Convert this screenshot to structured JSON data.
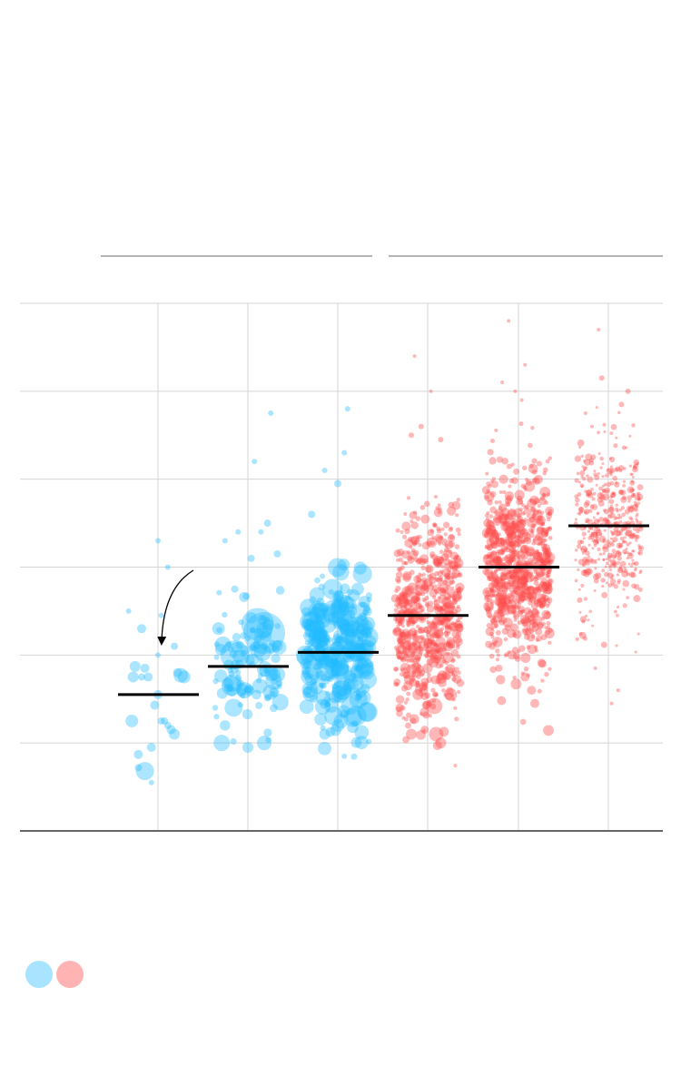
{
  "chart_data": {
    "type": "scatter",
    "title": "",
    "subtitle": "",
    "xlabel": "",
    "ylabel": "",
    "grid": true,
    "legend": {
      "placement": "bottom-left",
      "entries": []
    },
    "y_gridlines": 6,
    "columns": [
      {
        "group": 0,
        "color": "#22bbff",
        "median": 1.55,
        "dots": [
          [
            0.15,
            1.87,
            6
          ],
          [
            0.25,
            1.75,
            4
          ],
          [
            0.12,
            1.75,
            6
          ],
          [
            0.35,
            1.75,
            5
          ],
          [
            0.8,
            1.8,
            5
          ],
          [
            0.85,
            1.77,
            8
          ],
          [
            0.5,
            1.55,
            5
          ],
          [
            0.1,
            1.25,
            7
          ],
          [
            0.3,
            0.68,
            10
          ],
          [
            0.2,
            0.87,
            5
          ],
          [
            0.4,
            0.95,
            5
          ],
          [
            0.2,
            0.72,
            4
          ],
          [
            0.65,
            1.2,
            4
          ],
          [
            0.75,
            1.1,
            6
          ],
          [
            0.7,
            1.15,
            5
          ],
          [
            0.55,
            1.25,
            4
          ],
          [
            0.45,
            1.43,
            5
          ],
          [
            0.4,
            0.55,
            3
          ],
          [
            0.75,
            2.1,
            4
          ],
          [
            0.5,
            2.0,
            3
          ],
          [
            0.55,
            2.45,
            3
          ],
          [
            0.65,
            3.0,
            3
          ],
          [
            0.25,
            2.3,
            5
          ],
          [
            0.05,
            2.5,
            3
          ],
          [
            0.5,
            3.3,
            3
          ],
          [
            0.6,
            1.25,
            4
          ],
          [
            0.9,
            1.75,
            7
          ],
          [
            0.3,
            1.85,
            5
          ]
        ]
      },
      {
        "group": 0,
        "color": "#22bbff",
        "median": 1.87,
        "cloud": {
          "n": 110,
          "center": 1.9,
          "spread": 0.35,
          "rmin": 3,
          "rmax": 10,
          "seed": 11
        },
        "dots": [
          [
            0.75,
            2.25,
            23
          ],
          [
            0.65,
            2.35,
            18
          ],
          [
            0.3,
            2.0,
            16
          ],
          [
            0.25,
            1.65,
            11
          ],
          [
            0.45,
            1.6,
            9
          ],
          [
            0.05,
            2.3,
            7
          ],
          [
            0.1,
            1.0,
            9
          ],
          [
            0.75,
            1.0,
            8
          ],
          [
            0.5,
            0.95,
            6
          ],
          [
            0.55,
            3.1,
            4
          ],
          [
            0.15,
            3.3,
            3
          ],
          [
            0.35,
            3.4,
            3
          ],
          [
            0.85,
            4.75,
            3
          ],
          [
            0.6,
            4.2,
            3
          ],
          [
            0.8,
            3.5,
            4
          ],
          [
            0.3,
            2.75,
            4
          ],
          [
            0.7,
            3.4,
            3
          ],
          [
            0.95,
            3.15,
            4
          ]
        ]
      },
      {
        "group": 0,
        "color": "#22bbff",
        "median": 2.03,
        "cloud": {
          "n": 320,
          "center": 2.02,
          "spread": 0.4,
          "rmin": 3,
          "rmax": 12,
          "seed": 23
        },
        "dots": [
          [
            0.2,
            2.5,
            11
          ],
          [
            0.45,
            2.5,
            13
          ],
          [
            0.55,
            1.25,
            8
          ],
          [
            0.3,
            1.1,
            6
          ],
          [
            0.6,
            0.85,
            3
          ],
          [
            0.65,
            4.8,
            3
          ],
          [
            0.6,
            4.3,
            3
          ],
          [
            0.3,
            4.1,
            3
          ],
          [
            0.5,
            3.95,
            4
          ],
          [
            0.1,
            3.6,
            4
          ]
        ]
      },
      {
        "group": 1,
        "color": "#ff4d4d",
        "median": 2.45,
        "cloud": {
          "n": 650,
          "center": 2.45,
          "spread": 0.55,
          "rmin": 2,
          "rmax": 6,
          "seed": 37
        },
        "dots": [
          [
            0.6,
            1.42,
            9
          ],
          [
            0.63,
            1.1,
            8
          ],
          [
            0.4,
            1.6,
            7
          ],
          [
            0.85,
            1.55,
            7
          ],
          [
            0.7,
            1.0,
            6
          ],
          [
            0.25,
            1.1,
            6
          ],
          [
            0.35,
            1.55,
            6
          ],
          [
            0.45,
            1.35,
            5
          ],
          [
            0.3,
            5.4,
            2
          ],
          [
            0.55,
            5.0,
            2
          ],
          [
            0.4,
            4.6,
            3
          ],
          [
            0.7,
            4.45,
            3
          ],
          [
            0.25,
            4.5,
            3
          ],
          [
            0.65,
            0.97,
            5
          ]
        ]
      },
      {
        "group": 1,
        "color": "#ff4d4d",
        "median": 3.0,
        "cloud": {
          "n": 800,
          "center": 3.05,
          "spread": 0.55,
          "rmin": 2,
          "rmax": 6,
          "seed": 53
        },
        "dots": [
          [
            0.35,
            5.8,
            2
          ],
          [
            0.6,
            5.3,
            2
          ],
          [
            0.25,
            5.1,
            2
          ],
          [
            0.55,
            4.9,
            2
          ],
          [
            0.45,
            5.0,
            2
          ],
          [
            0.7,
            1.6,
            5
          ],
          [
            0.6,
            1.75,
            5
          ],
          [
            0.75,
            1.45,
            5
          ],
          [
            0.2,
            1.85,
            4
          ],
          [
            0.4,
            2.0,
            5
          ],
          [
            0.1,
            2.1,
            4
          ]
        ]
      },
      {
        "group": 1,
        "color": "#ff4d4d",
        "median": 3.47,
        "cloud": {
          "n": 450,
          "center": 3.45,
          "spread": 0.5,
          "rmin": 1.5,
          "rmax": 4,
          "seed": 71
        },
        "dots": [
          [
            0.35,
            5.7,
            2
          ],
          [
            0.4,
            5.15,
            3
          ],
          [
            0.8,
            5.0,
            3
          ],
          [
            0.7,
            4.85,
            3
          ],
          [
            0.15,
            4.75,
            2
          ],
          [
            0.25,
            4.6,
            2
          ],
          [
            0.55,
            1.45,
            2
          ],
          [
            0.3,
            1.85,
            2
          ],
          [
            0.65,
            1.6,
            2
          ]
        ]
      }
    ]
  },
  "legend_swatches": [
    {
      "color": "#a8e4ff"
    },
    {
      "color": "#ffb3b3"
    }
  ],
  "annotation": {
    "arrow_color": "#000000"
  },
  "colors": {
    "grid": "#d4d4d4",
    "axis": "#666666",
    "group_bracket": "#888888",
    "median": "#000000"
  }
}
